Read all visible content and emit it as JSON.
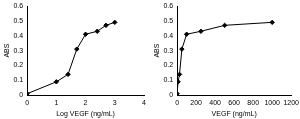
{
  "chart_data": [
    {
      "type": "scatter",
      "x_label": "Log VEGF (ng/mL)",
      "y_label": "ABS",
      "x": [
        0,
        1,
        1.4,
        1.7,
        2,
        2.4,
        2.7,
        3
      ],
      "values": [
        0.01,
        0.09,
        0.14,
        0.31,
        0.41,
        0.43,
        0.47,
        0.49
      ],
      "color": "#000000",
      "marker": "diamond",
      "line_style": "solid",
      "xlim": [
        0,
        4
      ],
      "xticks": [
        0,
        1,
        2,
        3,
        4
      ],
      "ylim": [
        0,
        0.6
      ],
      "yticks": [
        0,
        0.1,
        0.2,
        0.3,
        0.4,
        0.5,
        0.6
      ],
      "grid": false
    },
    {
      "type": "scatter",
      "x_label": "VEGF (ng/mL)",
      "y_label": "ABS",
      "x": [
        0,
        10,
        25,
        50,
        100,
        250,
        500,
        1000
      ],
      "values": [
        0.01,
        0.09,
        0.14,
        0.31,
        0.41,
        0.43,
        0.47,
        0.49
      ],
      "color": "#000000",
      "marker": "diamond",
      "line_style": "solid",
      "xlim": [
        0,
        1200
      ],
      "xticks": [
        0,
        200,
        400,
        600,
        800,
        1000,
        1200
      ],
      "ylim": [
        0,
        0.6
      ],
      "yticks": [
        0,
        0.1,
        0.2,
        0.3,
        0.4,
        0.5,
        0.6
      ],
      "grid": false
    }
  ]
}
